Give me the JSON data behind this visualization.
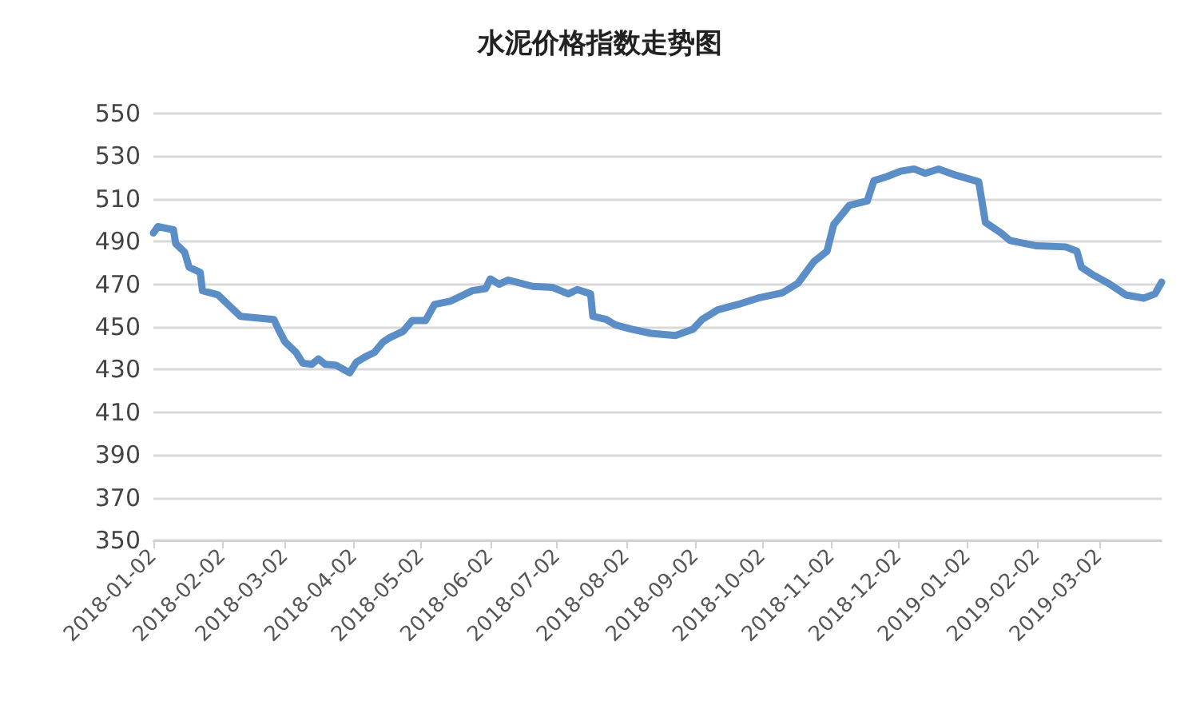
{
  "chart_data": {
    "type": "line",
    "title": "水泥价格指数走势图",
    "x": [
      "2018-01-02",
      "2018-01-04",
      "2018-01-11",
      "2018-01-12",
      "2018-01-16",
      "2018-01-18",
      "2018-01-23",
      "2018-01-24",
      "2018-01-31",
      "2018-02-07",
      "2018-02-10",
      "2018-02-25",
      "2018-02-27",
      "2018-03-02",
      "2018-03-07",
      "2018-03-10",
      "2018-03-14",
      "2018-03-17",
      "2018-03-20",
      "2018-03-25",
      "2018-03-31",
      "2018-04-03",
      "2018-04-07",
      "2018-04-11",
      "2018-04-15",
      "2018-04-18",
      "2018-04-24",
      "2018-04-28",
      "2018-05-04",
      "2018-05-08",
      "2018-05-15",
      "2018-05-25",
      "2018-05-31",
      "2018-06-02",
      "2018-06-06",
      "2018-06-10",
      "2018-06-21",
      "2018-06-30",
      "2018-07-07",
      "2018-07-11",
      "2018-07-17",
      "2018-07-18",
      "2018-07-24",
      "2018-07-28",
      "2018-08-04",
      "2018-08-13",
      "2018-08-24",
      "2018-09-01",
      "2018-09-05",
      "2018-09-12",
      "2018-09-21",
      "2018-09-30",
      "2018-10-11",
      "2018-10-18",
      "2018-10-25",
      "2018-10-31",
      "2018-11-03",
      "2018-11-10",
      "2018-11-18",
      "2018-11-21",
      "2018-11-27",
      "2018-12-03",
      "2018-12-09",
      "2018-12-14",
      "2018-12-20",
      "2018-12-28",
      "2019-01-07",
      "2019-01-10",
      "2019-01-17",
      "2019-01-21",
      "2019-02-02",
      "2019-02-15",
      "2019-02-20",
      "2019-02-22",
      "2019-02-27",
      "2019-03-06",
      "2019-03-14",
      "2019-03-22",
      "2019-03-27",
      "2019-03-30"
    ],
    "series": [
      {
        "color": "#5b8ec6",
        "values": [
          494,
          497,
          495.5,
          489,
          485,
          478,
          475.5,
          467,
          465,
          458,
          455,
          453.5,
          449,
          443,
          438,
          433,
          432.5,
          435,
          432.5,
          432,
          428.5,
          433.5,
          436,
          438,
          443,
          445,
          448,
          453,
          453,
          460.5,
          462,
          467,
          468,
          472.5,
          470,
          472,
          469,
          468.5,
          465.5,
          467.5,
          465.5,
          455,
          453.5,
          451,
          449,
          447,
          446,
          449,
          453.5,
          458,
          460.5,
          463.5,
          466,
          470.5,
          480.5,
          485.5,
          498,
          507,
          509,
          518.5,
          520.5,
          523,
          524,
          522,
          524,
          521,
          518,
          499,
          494,
          490.5,
          488,
          487.5,
          485.5,
          478,
          474.5,
          470.5,
          465,
          463.5,
          465.5,
          471
        ]
      }
    ],
    "ylim": [
      350,
      550
    ],
    "yticks": [
      350,
      370,
      390,
      410,
      430,
      450,
      470,
      490,
      510,
      530,
      550
    ],
    "xlim": [
      "2018-01-02",
      "2019-03-30"
    ],
    "xticks": [
      "2018-01-02",
      "2018-02-02",
      "2018-03-02",
      "2018-04-02",
      "2018-05-02",
      "2018-06-02",
      "2018-07-02",
      "2018-08-02",
      "2018-09-02",
      "2018-10-02",
      "2018-11-02",
      "2018-12-02",
      "2019-01-02",
      "2019-02-02",
      "2019-03-02"
    ],
    "grid": "y",
    "marker": "none",
    "line_style": "solid"
  }
}
